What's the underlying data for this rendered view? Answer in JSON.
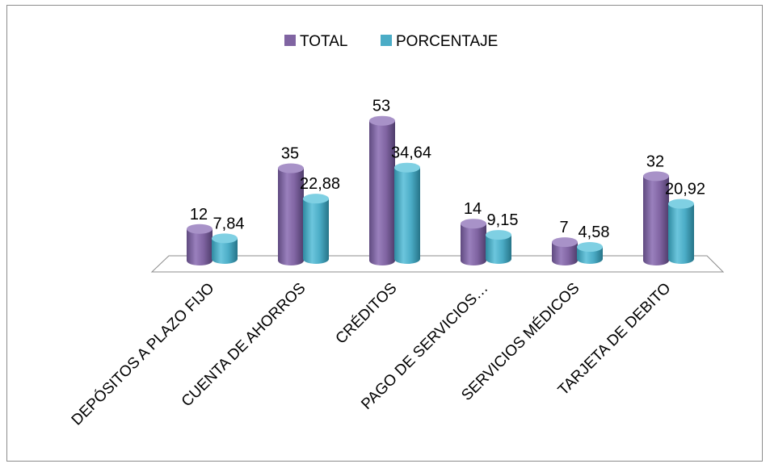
{
  "chart_data": {
    "type": "bar",
    "categories": [
      "DEPÓSITOS A PLAZO FIJO",
      "CUENTA DE AHORROS",
      "CRÉDITOS",
      "PAGO DE SERVICIOS…",
      "SERVICIOS MÉDICOS",
      "TARJETA DE DEBITO"
    ],
    "series": [
      {
        "name": "TOTAL",
        "values": [
          12,
          35,
          53,
          14,
          7,
          32
        ],
        "labels": [
          "12",
          "35",
          "53",
          "14",
          "7",
          "32"
        ],
        "color": "#8064a2"
      },
      {
        "name": "PORCENTAJE",
        "values": [
          7.84,
          22.88,
          34.64,
          9.15,
          4.58,
          20.92
        ],
        "labels": [
          "7,84",
          "22,88",
          "34,64",
          "9,15",
          "4,58",
          "20,92"
        ],
        "color": "#4bacc6"
      }
    ],
    "style": "3d-cylinder",
    "legend": "top",
    "grid": false,
    "ylim": [
      0,
      60
    ]
  }
}
